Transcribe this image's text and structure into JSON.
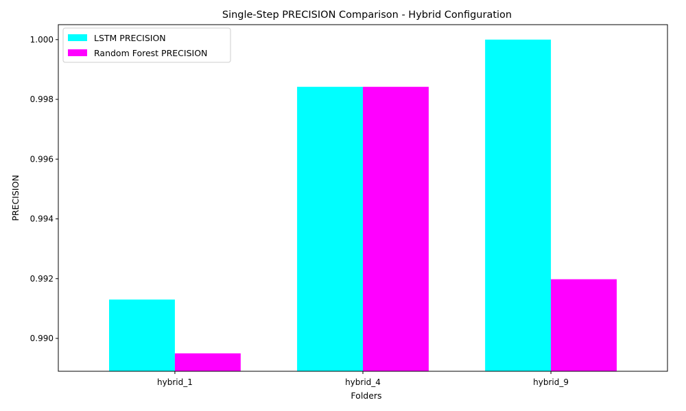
{
  "chart_data": {
    "type": "bar",
    "title": "Single-Step PRECISION Comparison - Hybrid Configuration",
    "xlabel": "Folders",
    "ylabel": "PRECISION",
    "categories": [
      "hybrid_1",
      "hybrid_4",
      "hybrid_9"
    ],
    "series": [
      {
        "name": "LSTM PRECISION",
        "values": [
          0.9913,
          0.99842,
          1.0
        ],
        "color": "#00ffff"
      },
      {
        "name": "Random Forest PRECISION",
        "values": [
          0.9895,
          0.99842,
          0.99198
        ],
        "color": "#ff00ff"
      }
    ],
    "ylim": [
      0.9889,
      1.0005
    ],
    "yticks": [
      0.99,
      0.992,
      0.994,
      0.996,
      0.998,
      1.0
    ],
    "ytick_labels": [
      "0.990",
      "0.992",
      "0.994",
      "0.996",
      "0.998",
      "1.000"
    ],
    "grid": false,
    "legend_position": "top-left"
  }
}
